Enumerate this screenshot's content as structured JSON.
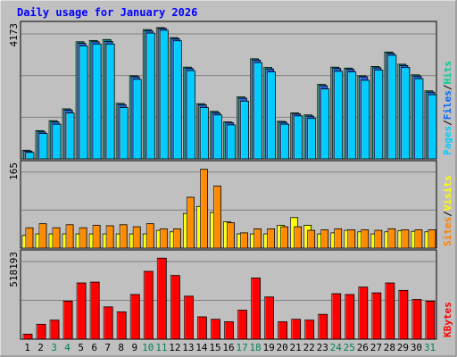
{
  "chart_data": [
    {
      "type": "bar",
      "title": "Daily usage for January 2026",
      "max_label": "4173",
      "side_labels": [
        "Pages",
        "/",
        "Files",
        "/",
        "Hits"
      ],
      "colors": {
        "hits": "#00cc99",
        "files": "#0066ff",
        "pages": "#00ccff",
        "hits_bar": "#00a080",
        "files_bar": "#2a5fd8",
        "pages_bar": "#00ccff"
      },
      "categories": [
        "1",
        "2",
        "3",
        "4",
        "5",
        "6",
        "7",
        "8",
        "9",
        "10",
        "11",
        "12",
        "13",
        "14",
        "15",
        "16",
        "17",
        "18",
        "19",
        "20",
        "21",
        "22",
        "23",
        "24",
        "25",
        "26",
        "27",
        "28",
        "29",
        "30",
        "31"
      ],
      "series": [
        {
          "name": "Hits",
          "values": [
            270,
            880,
            1190,
            1560,
            3650,
            3690,
            3720,
            1730,
            2590,
            4030,
            4090,
            3780,
            2860,
            1720,
            1480,
            1150,
            1930,
            3120,
            2850,
            1170,
            1430,
            1370,
            2320,
            2860,
            2830,
            2590,
            2880,
            3330,
            2950,
            2620,
            2120
          ]
        },
        {
          "name": "Files",
          "values": [
            240,
            840,
            1150,
            1520,
            3600,
            3650,
            3660,
            1690,
            2560,
            3990,
            4070,
            3740,
            2820,
            1680,
            1440,
            1130,
            1890,
            3080,
            2800,
            1140,
            1400,
            1330,
            2280,
            2820,
            2790,
            2560,
            2840,
            3290,
            2910,
            2580,
            2080
          ]
        },
        {
          "name": "Pages",
          "values": [
            200,
            790,
            1080,
            1430,
            3520,
            3580,
            3580,
            1600,
            2480,
            3920,
            4010,
            3680,
            2750,
            1600,
            1370,
            1060,
            1800,
            3000,
            2710,
            1080,
            1340,
            1260,
            2180,
            2730,
            2710,
            2450,
            2770,
            3230,
            2850,
            2500,
            2000
          ]
        }
      ]
    },
    {
      "type": "bar",
      "max_label": "165",
      "side_labels": [
        "Sites",
        "/",
        "Visits"
      ],
      "colors": {
        "sites": "#ff8000",
        "visits": "#ffff00",
        "sites_bar": "#ff8c00",
        "visits_bar": "#ffff00"
      },
      "categories": [
        "1",
        "2",
        "3",
        "4",
        "5",
        "6",
        "7",
        "8",
        "9",
        "10",
        "11",
        "12",
        "13",
        "14",
        "15",
        "16",
        "17",
        "18",
        "19",
        "20",
        "21",
        "22",
        "23",
        "24",
        "25",
        "26",
        "27",
        "28",
        "29",
        "30",
        "31"
      ],
      "series": [
        {
          "name": "Visits",
          "values": [
            25,
            28,
            28,
            28,
            28,
            28,
            28,
            28,
            28,
            28,
            35,
            32,
            68,
            82,
            70,
            52,
            28,
            28,
            28,
            45,
            60,
            45,
            28,
            30,
            35,
            32,
            28,
            32,
            34,
            33,
            32
          ]
        },
        {
          "name": "Sites",
          "values": [
            40,
            48,
            40,
            46,
            40,
            45,
            44,
            46,
            42,
            48,
            38,
            38,
            100,
            155,
            122,
            50,
            30,
            38,
            38,
            42,
            42,
            35,
            36,
            38,
            36,
            36,
            35,
            38,
            36,
            36,
            36
          ]
        }
      ]
    },
    {
      "type": "bar",
      "max_label": "518193",
      "side_labels": [
        "KBytes"
      ],
      "colors": {
        "kbytes": "#ff0000",
        "kbytes_bar": "#ff0000"
      },
      "categories": [
        "1",
        "2",
        "3",
        "4",
        "5",
        "6",
        "7",
        "8",
        "9",
        "10",
        "11",
        "12",
        "13",
        "14",
        "15",
        "16",
        "17",
        "18",
        "19",
        "20",
        "21",
        "22",
        "23",
        "24",
        "25",
        "26",
        "27",
        "28",
        "29",
        "30",
        "31"
      ],
      "series": [
        {
          "name": "KBytes",
          "values": [
            30000,
            90000,
            115000,
            230000,
            340000,
            345000,
            195000,
            165000,
            270000,
            410000,
            490000,
            385000,
            260000,
            135000,
            120000,
            105000,
            175000,
            370000,
            255000,
            105000,
            120000,
            115000,
            150000,
            275000,
            270000,
            315000,
            280000,
            340000,
            295000,
            240000,
            230000
          ]
        }
      ]
    }
  ],
  "weekend_days": [
    "3",
    "4",
    "10",
    "11",
    "17",
    "18",
    "24",
    "25",
    "31"
  ],
  "weekend_color": "#00805a",
  "weekday_color": "#000000"
}
